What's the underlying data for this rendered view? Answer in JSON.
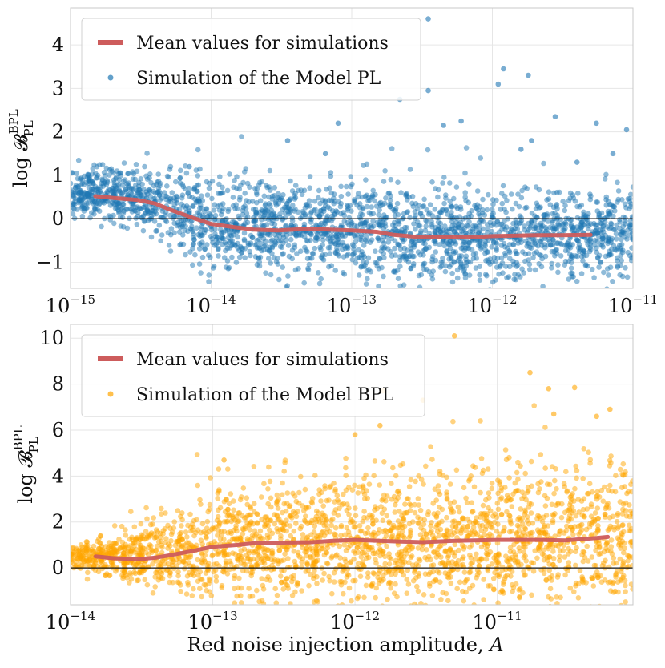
{
  "chart_data": [
    {
      "type": "scatter",
      "panel": "top",
      "xscale": "log",
      "xlim": [
        1e-15,
        1e-11
      ],
      "ylim": [
        -1.6,
        4.85
      ],
      "ylabel": "log 𝓑",
      "ylabel_sup": "BPL",
      "ylabel_sub": "PL",
      "xlabel": "",
      "x_ticks": [
        {
          "base": "10",
          "exp": "−15",
          "value": 1e-15
        },
        {
          "base": "10",
          "exp": "−14",
          "value": 1e-14
        },
        {
          "base": "10",
          "exp": "−13",
          "value": 1e-13
        },
        {
          "base": "10",
          "exp": "−12",
          "value": 1e-12
        },
        {
          "base": "10",
          "exp": "−11",
          "value": 1e-11
        }
      ],
      "y_ticks": [
        {
          "label": "−1",
          "value": -1
        },
        {
          "label": "0",
          "value": 0
        },
        {
          "label": "1",
          "value": 1
        },
        {
          "label": "2",
          "value": 2
        },
        {
          "label": "3",
          "value": 3
        },
        {
          "label": "4",
          "value": 4
        }
      ],
      "reference_line_y": 0,
      "grid": true,
      "legend": {
        "placement": "top-left",
        "entries": [
          {
            "label": "Mean values for simulations",
            "marker": "line",
            "color": "#cd5c5c"
          },
          {
            "label": "Simulation of the Model PL",
            "marker": "dot",
            "color": "#1f77b4"
          }
        ]
      },
      "scatter_color": "#1f77b4",
      "scatter_count_estimate": 2500,
      "scatter_density_profile": [
        {
          "x": 1e-15,
          "center": 0.6,
          "spread": 0.25
        },
        {
          "x": 3e-15,
          "center": 0.5,
          "spread": 0.35
        },
        {
          "x": 1e-14,
          "center": -0.1,
          "spread": 0.55
        },
        {
          "x": 1e-13,
          "center": -0.25,
          "spread": 0.55
        },
        {
          "x": 1e-12,
          "center": -0.4,
          "spread": 0.5
        },
        {
          "x": 1e-11,
          "center": -0.4,
          "spread": 0.5
        }
      ],
      "notable_points": [
        {
          "x": 3.5e-13,
          "y": 4.6
        },
        {
          "x": 1.2e-12,
          "y": 3.45
        },
        {
          "x": 1.1e-12,
          "y": 3.1
        },
        {
          "x": 1.8e-12,
          "y": 3.3
        },
        {
          "x": 3.5e-13,
          "y": 2.95
        },
        {
          "x": 2.2e-13,
          "y": 2.75
        },
        {
          "x": 5.5e-12,
          "y": 2.2
        },
        {
          "x": 2.8e-12,
          "y": 2.35
        },
        {
          "x": 9e-12,
          "y": 2.05
        },
        {
          "x": 8e-14,
          "y": 2.2
        },
        {
          "x": 4.5e-13,
          "y": 2.15
        },
        {
          "x": 6e-13,
          "y": 2.25
        },
        {
          "x": 6.5e-14,
          "y": 1.5
        },
        {
          "x": 3.5e-14,
          "y": 1.8
        },
        {
          "x": 7e-15,
          "y": 1.2
        },
        {
          "x": 1.6e-12,
          "y": 1.6
        },
        {
          "x": 1.9e-12,
          "y": 1.8
        },
        {
          "x": 4e-12,
          "y": 1.3
        },
        {
          "x": 7.2e-12,
          "y": 1.5
        }
      ],
      "series": [
        {
          "name": "Mean values for simulations",
          "color": "#cd5c5c",
          "x": [
            1.5e-15,
            2e-15,
            3e-15,
            4e-15,
            5e-15,
            7e-15,
            1e-14,
            1.5e-14,
            2e-14,
            3e-14,
            5e-14,
            7e-14,
            1e-13,
            1.5e-13,
            2e-13,
            3e-13,
            5e-13,
            7e-13,
            1e-12,
            2e-12,
            3e-12,
            5e-12
          ],
          "y": [
            0.52,
            0.48,
            0.43,
            0.35,
            0.22,
            0.05,
            -0.12,
            -0.2,
            -0.25,
            -0.27,
            -0.23,
            -0.25,
            -0.27,
            -0.3,
            -0.37,
            -0.42,
            -0.43,
            -0.43,
            -0.4,
            -0.38,
            -0.38,
            -0.37
          ]
        }
      ]
    },
    {
      "type": "scatter",
      "panel": "bottom",
      "xscale": "log",
      "xlim": [
        1e-14,
        9e-11
      ],
      "ylim": [
        -1.6,
        10.6
      ],
      "ylabel": "log 𝓑",
      "ylabel_sup": "BPL",
      "ylabel_sub": "PL",
      "xlabel": "Red noise injection amplitude, ",
      "xlabel_italic": "A",
      "x_ticks": [
        {
          "base": "10",
          "exp": "−14",
          "value": 1e-14
        },
        {
          "base": "10",
          "exp": "−13",
          "value": 1e-13
        },
        {
          "base": "10",
          "exp": "−12",
          "value": 1e-12
        },
        {
          "base": "10",
          "exp": "−11",
          "value": 1e-11
        }
      ],
      "y_ticks": [
        {
          "label": "0",
          "value": 0
        },
        {
          "label": "2",
          "value": 2
        },
        {
          "label": "4",
          "value": 4
        },
        {
          "label": "6",
          "value": 6
        },
        {
          "label": "8",
          "value": 8
        },
        {
          "label": "10",
          "value": 10
        }
      ],
      "reference_line_y": 0,
      "grid": true,
      "legend": {
        "placement": "top-left",
        "entries": [
          {
            "label": "Mean values for simulations",
            "marker": "line",
            "color": "#cd5c5c"
          },
          {
            "label": "Simulation of the Model BPL",
            "marker": "dot",
            "color": "#ffa500"
          }
        ]
      },
      "scatter_color": "#ffa500",
      "scatter_count_estimate": 2500,
      "scatter_density_profile": [
        {
          "x": 1e-14,
          "center": 0.55,
          "spread": 0.25
        },
        {
          "x": 3e-14,
          "center": 0.45,
          "spread": 0.6
        },
        {
          "x": 1e-13,
          "center": 0.9,
          "spread": 1.2
        },
        {
          "x": 1e-12,
          "center": 1.1,
          "spread": 1.5
        },
        {
          "x": 1e-11,
          "center": 1.2,
          "spread": 1.5
        },
        {
          "x": 9e-11,
          "center": 1.3,
          "spread": 1.5
        }
      ],
      "notable_points": [
        {
          "x": 5e-12,
          "y": 10.1
        },
        {
          "x": 1.7e-11,
          "y": 8.5
        },
        {
          "x": 3.5e-11,
          "y": 7.85
        },
        {
          "x": 2.3e-11,
          "y": 7.8
        },
        {
          "x": 3e-12,
          "y": 7.3
        },
        {
          "x": 6.2e-11,
          "y": 6.9
        },
        {
          "x": 5e-11,
          "y": 6.6
        },
        {
          "x": 2.5e-11,
          "y": 6.7
        },
        {
          "x": 1e-12,
          "y": 5.8
        },
        {
          "x": 1.2e-13,
          "y": 4.7
        },
        {
          "x": 1.5e-12,
          "y": 6.2
        }
      ],
      "series": [
        {
          "name": "Mean values for simulations",
          "color": "#cd5c5c",
          "x": [
            1.5e-14,
            2e-14,
            3e-14,
            4e-14,
            5e-14,
            7e-14,
            1e-13,
            1.5e-13,
            2e-13,
            3e-13,
            5e-13,
            7e-13,
            1e-12,
            2e-12,
            3e-12,
            5e-12,
            1e-11,
            2e-11,
            3e-11,
            5e-11,
            6e-11
          ],
          "y": [
            0.5,
            0.42,
            0.38,
            0.45,
            0.55,
            0.72,
            0.92,
            1.0,
            1.08,
            1.1,
            1.12,
            1.18,
            1.22,
            1.15,
            1.12,
            1.18,
            1.22,
            1.22,
            1.2,
            1.3,
            1.35
          ]
        }
      ]
    }
  ]
}
